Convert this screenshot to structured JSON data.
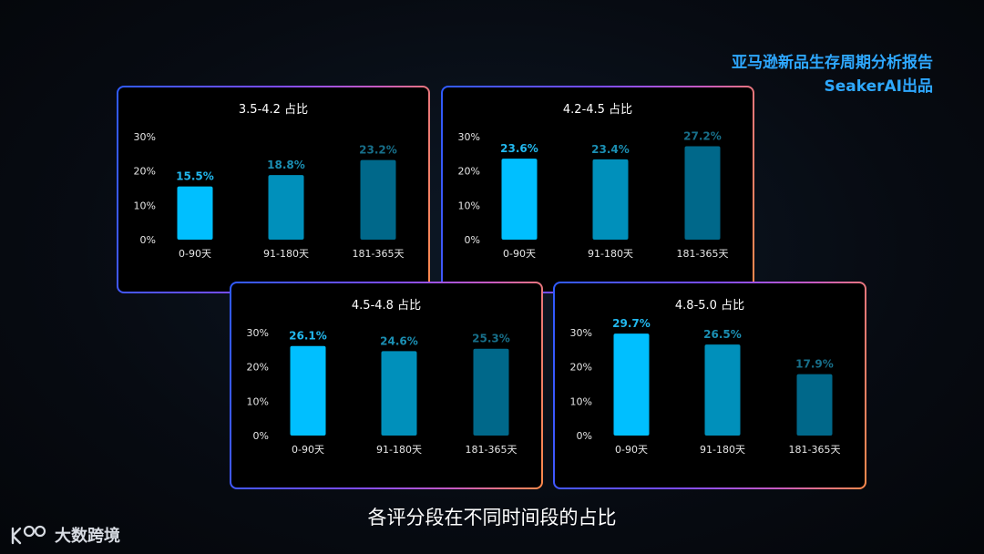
{
  "report": {
    "title_line1": "亚马逊新品生存周期分析报告",
    "title_line2": "SeakerAI出品"
  },
  "caption": "各评分段在不同时间段的占比",
  "logo": {
    "text": "大数跨境",
    "icon": "tenbo-logo-icon"
  },
  "colors": {
    "bar_colors": [
      "#00bfff",
      "#0090bb",
      "#00688a"
    ],
    "label_colors": [
      "#22b8ee",
      "#1b8fb3",
      "#176f8a"
    ],
    "border_gradient": [
      "#2f5bff",
      "#7a4cff",
      "#c85ac0",
      "#ff8a4a"
    ]
  },
  "chart_data": [
    {
      "type": "bar",
      "title": "3.5-4.2 占比",
      "categories": [
        "0-90天",
        "91-180天",
        "181-365天"
      ],
      "values": [
        15.5,
        18.8,
        23.2
      ],
      "value_labels": [
        "15.5%",
        "18.8%",
        "23.2%"
      ],
      "yticks": [
        "0%",
        "10%",
        "20%",
        "30%"
      ],
      "ylim": [
        0,
        30
      ]
    },
    {
      "type": "bar",
      "title": "4.2-4.5 占比",
      "categories": [
        "0-90天",
        "91-180天",
        "181-365天"
      ],
      "values": [
        23.6,
        23.4,
        27.2
      ],
      "value_labels": [
        "23.6%",
        "23.4%",
        "27.2%"
      ],
      "yticks": [
        "0%",
        "10%",
        "20%",
        "30%"
      ],
      "ylim": [
        0,
        30
      ]
    },
    {
      "type": "bar",
      "title": "4.5-4.8 占比",
      "categories": [
        "0-90天",
        "91-180天",
        "181-365天"
      ],
      "values": [
        26.1,
        24.6,
        25.3
      ],
      "value_labels": [
        "26.1%",
        "24.6%",
        "25.3%"
      ],
      "yticks": [
        "0%",
        "10%",
        "20%",
        "30%"
      ],
      "ylim": [
        0,
        30
      ]
    },
    {
      "type": "bar",
      "title": "4.8-5.0 占比",
      "categories": [
        "0-90天",
        "91-180天",
        "181-365天"
      ],
      "values": [
        29.7,
        26.5,
        17.9
      ],
      "value_labels": [
        "29.7%",
        "26.5%",
        "17.9%"
      ],
      "yticks": [
        "0%",
        "10%",
        "20%",
        "30%"
      ],
      "ylim": [
        0,
        30
      ]
    }
  ]
}
